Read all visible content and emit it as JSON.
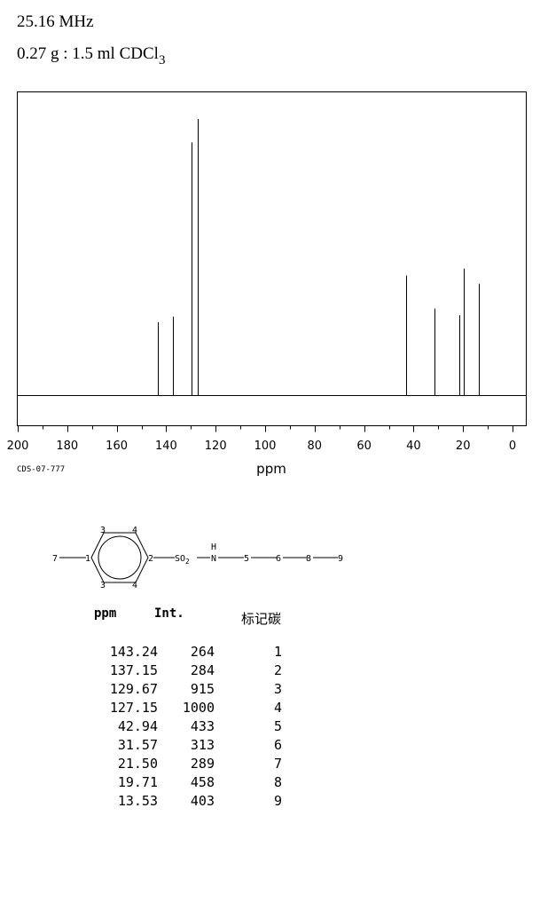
{
  "header": {
    "frequency": "25.16 MHz",
    "sample_main": "0.27 g : 1.5 ml CDCl",
    "sample_sub": "3"
  },
  "chart_data": {
    "type": "bar",
    "xlabel": "ppm",
    "xlim": [
      200,
      0
    ],
    "x_reversed": true,
    "x_ticks": [
      200,
      180,
      160,
      140,
      120,
      100,
      80,
      60,
      40,
      20,
      0
    ],
    "peaks": [
      {
        "ppm": 143.24,
        "intensity": 264
      },
      {
        "ppm": 137.15,
        "intensity": 284
      },
      {
        "ppm": 129.67,
        "intensity": 915
      },
      {
        "ppm": 127.15,
        "intensity": 1000
      },
      {
        "ppm": 42.94,
        "intensity": 433
      },
      {
        "ppm": 31.57,
        "intensity": 313
      },
      {
        "ppm": 21.5,
        "intensity": 289
      },
      {
        "ppm": 19.71,
        "intensity": 458
      },
      {
        "ppm": 13.53,
        "intensity": 403
      }
    ],
    "grid": false
  },
  "spectrum_code": "CDS-07-777",
  "molecule": {
    "labels": {
      "c7": "7",
      "c1": "1",
      "c2": "2",
      "c3a": "3",
      "c4a": "4",
      "c3b": "3",
      "c4b": "4",
      "so2": "SO",
      "so2_sub": "2",
      "nh_h": "H",
      "nh_n": "N",
      "c5": "5",
      "c6": "6",
      "c8": "8",
      "c9": "9"
    }
  },
  "table": {
    "headers": {
      "ppm": "ppm",
      "int": "Int.",
      "label": "标记碳"
    },
    "rows": [
      {
        "ppm": "143.24",
        "int": "264",
        "label": "1"
      },
      {
        "ppm": "137.15",
        "int": "284",
        "label": "2"
      },
      {
        "ppm": "129.67",
        "int": "915",
        "label": "3"
      },
      {
        "ppm": "127.15",
        "int": "1000",
        "label": "4"
      },
      {
        "ppm": "42.94",
        "int": "433",
        "label": "5"
      },
      {
        "ppm": "31.57",
        "int": "313",
        "label": "6"
      },
      {
        "ppm": "21.50",
        "int": "289",
        "label": "7"
      },
      {
        "ppm": "19.71",
        "int": "458",
        "label": "8"
      },
      {
        "ppm": "13.53",
        "int": "403",
        "label": "9"
      }
    ]
  }
}
